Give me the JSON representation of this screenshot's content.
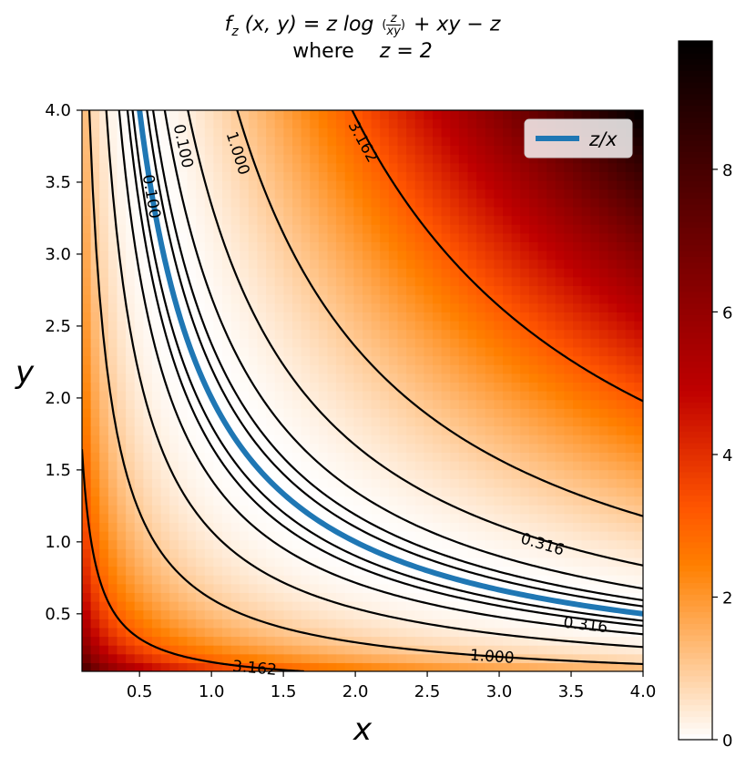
{
  "title": {
    "line1_fz": "f",
    "line1_sub": "z",
    "line1_args": "(x, y) = z log",
    "line1_num": "z",
    "line1_den": "xy",
    "line1_tail": "+ xy − z",
    "line2_where": "where",
    "line2_eq": "z = 2"
  },
  "chart_data": {
    "type": "heatmap",
    "function": "f(x,y) = z*log(z/(x*y)) + x*y - z",
    "params": {
      "z": 2
    },
    "xlabel": "x",
    "ylabel": "y",
    "xlim": [
      0.1,
      4.0
    ],
    "ylim": [
      0.1,
      4.0
    ],
    "x_ticks": [
      "0.5",
      "1.0",
      "1.5",
      "2.0",
      "2.5",
      "3.0",
      "3.5",
      "4.0"
    ],
    "y_ticks": [
      "0.5",
      "1.0",
      "1.5",
      "2.0",
      "2.5",
      "3.0",
      "3.5",
      "4.0"
    ],
    "colormap": "gist_heat_r",
    "colorbar": {
      "ticks": [
        "0",
        "2",
        "4",
        "6",
        "8"
      ],
      "range": [
        0,
        9.8
      ]
    },
    "contour_levels": [
      0.01,
      0.0316,
      0.1,
      0.316,
      1.0,
      3.162
    ],
    "contour_labels": [
      {
        "text": "0.100",
        "x": 0.58,
        "y": 3.4
      },
      {
        "text": "0.100",
        "x": 0.8,
        "y": 3.75
      },
      {
        "text": "1.000",
        "x": 1.18,
        "y": 3.7
      },
      {
        "text": "3.162",
        "x": 2.05,
        "y": 3.78
      },
      {
        "text": "0.316",
        "x": 3.3,
        "y": 0.98
      },
      {
        "text": "0.316",
        "x": 3.6,
        "y": 0.42
      },
      {
        "text": "1.000",
        "x": 2.95,
        "y": 0.2
      },
      {
        "text": "3.162",
        "x": 1.3,
        "y": 0.12
      }
    ],
    "series": [
      {
        "name": "z/x",
        "formula": "y = z / x",
        "color": "#1f77b4"
      }
    ],
    "legend": {
      "position": "top-right"
    }
  }
}
